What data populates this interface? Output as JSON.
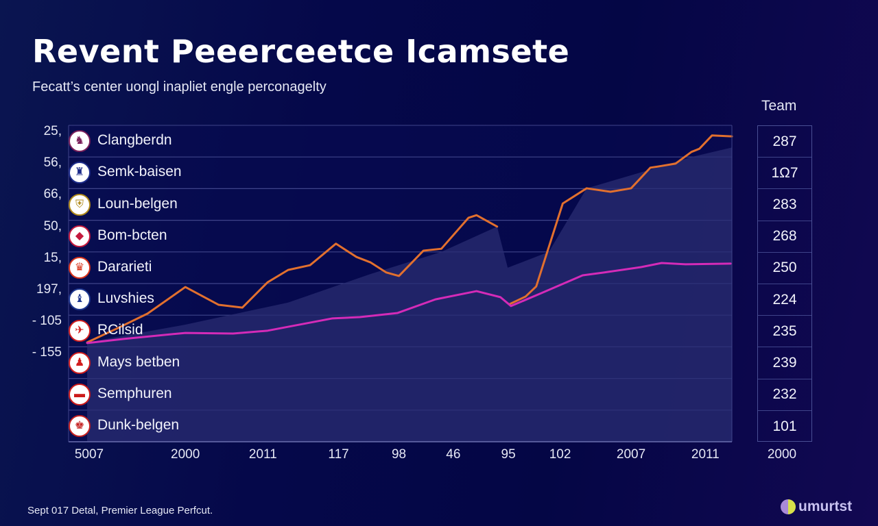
{
  "header": {
    "title": "Revent Peeerceetce Icamsete",
    "subtitle": "Fecatt’s center uongl inapliet engle perconagelty",
    "team_column_label": "Team"
  },
  "footer": {
    "note": "Sept 017 Detal, Premier League Perfcut.",
    "brand": "umurtst",
    "brand_icon": "leaf-swirl-logo-icon"
  },
  "colors": {
    "background": "#05084a",
    "orange_line": "#e2702e",
    "magenta_line": "#d42bb8",
    "area_fill": "#2a2c72",
    "gridline": "#3f448a"
  },
  "rows": [
    {
      "ytick": "25,",
      "team": "Clangberdn",
      "value": "287",
      "logo": "crest-bird-maroon-icon",
      "logo_glyph": "♞",
      "logo_color": "#7a1f5a"
    },
    {
      "ytick": "56,",
      "team": "Semk-baisen",
      "value": "1Ω7",
      "logo": "crest-lion-blue-icon",
      "logo_glyph": "♜",
      "logo_color": "#1d2c8a"
    },
    {
      "ytick": "66,",
      "team": "Loun-belgen",
      "value": "283",
      "logo": "crest-shield-gold-icon",
      "logo_glyph": "⛨",
      "logo_color": "#b08a1a"
    },
    {
      "ytick": "50,",
      "team": "Bom-bcten",
      "value": "268",
      "logo": "crest-diamond-red-icon",
      "logo_glyph": "◆",
      "logo_color": "#c4193d"
    },
    {
      "ytick": "15,",
      "team": "Dararieti",
      "value": "250",
      "logo": "crest-dragon-red-icon",
      "logo_glyph": "♛",
      "logo_color": "#d8331a"
    },
    {
      "ytick": "197,",
      "team": "Luvshies",
      "value": "224",
      "logo": "crest-figure-yellow-icon",
      "logo_glyph": "♝",
      "logo_color": "#1e3790"
    },
    {
      "ytick": "- 105",
      "team": "RCilsid",
      "value": "235",
      "logo": "crest-bat-red-icon",
      "logo_glyph": "✈",
      "logo_color": "#d21e1e"
    },
    {
      "ytick": "- 155",
      "team": "Mays betben",
      "value": "239",
      "logo": "crest-cannon-blue-icon",
      "logo_glyph": "♟",
      "logo_color": "#d21e1e"
    },
    {
      "ytick": "",
      "team": "Semphuren",
      "value": "232",
      "logo": "crest-cannon-red-icon",
      "logo_glyph": "▬",
      "logo_color": "#cc1a1a"
    },
    {
      "ytick": "",
      "team": "Dunk-belgen",
      "value": "101",
      "logo": "crest-teal-icon",
      "logo_glyph": "♚",
      "logo_color": "#c42020"
    }
  ],
  "chart_data": {
    "type": "line",
    "title": "Revent Peeerceetce Icamsete",
    "subtitle": "Fecatt’s center uongl inapliet engle perconagelty",
    "xlabel": "",
    "ylabel": "",
    "x_tick_labels": [
      "5007",
      "2000",
      "2011",
      "117",
      "98",
      "46",
      "95",
      "102",
      "2007",
      "2011"
    ],
    "right_axis_bottom_label": "2000",
    "y_tick_labels": [
      "25,",
      "56,",
      "66,",
      "50,",
      "15,",
      "197,",
      "- 105",
      "- 155"
    ],
    "x_range": [
      0,
      100
    ],
    "ylim": [
      0,
      100
    ],
    "grid": true,
    "legend": "none",
    "series": [
      {
        "name": "orange",
        "color": "#e2702e",
        "segments": [
          [
            [
              2.8,
              31.4
            ],
            [
              7.2,
              35.7
            ],
            [
              11.9,
              40.5
            ],
            [
              17.6,
              48.9
            ],
            [
              22.6,
              43.3
            ],
            [
              26.2,
              42.4
            ],
            [
              30.0,
              50.4
            ],
            [
              33.1,
              54.3
            ],
            [
              36.4,
              55.8
            ],
            [
              40.3,
              62.6
            ],
            [
              43.4,
              58.4
            ],
            [
              45.5,
              56.7
            ],
            [
              47.9,
              53.5
            ],
            [
              49.8,
              52.4
            ],
            [
              53.5,
              60.4
            ],
            [
              56.2,
              61.0
            ],
            [
              60.3,
              70.8
            ],
            [
              61.5,
              71.6
            ],
            [
              64.6,
              68.0
            ]
          ],
          [
            [
              66.5,
              43.5
            ],
            [
              68.9,
              45.9
            ],
            [
              70.5,
              49.1
            ],
            [
              74.5,
              75.3
            ],
            [
              78.1,
              80.1
            ],
            [
              81.7,
              79.0
            ],
            [
              84.8,
              80.1
            ],
            [
              87.7,
              86.6
            ],
            [
              88.9,
              87.0
            ],
            [
              91.5,
              87.9
            ],
            [
              93.9,
              91.6
            ],
            [
              95.1,
              92.6
            ],
            [
              97.0,
              96.8
            ],
            [
              100,
              96.5
            ]
          ]
        ]
      },
      {
        "name": "magenta",
        "color": "#d42bb8",
        "segments": [
          [
            [
              2.8,
              31.2
            ],
            [
              8.3,
              32.5
            ],
            [
              17.6,
              34.4
            ],
            [
              24.8,
              34.2
            ],
            [
              30.0,
              35.1
            ],
            [
              39.8,
              39.0
            ],
            [
              43.9,
              39.4
            ],
            [
              49.6,
              40.7
            ],
            [
              55.3,
              45.0
            ],
            [
              61.5,
              47.6
            ],
            [
              65.1,
              45.7
            ],
            [
              66.7,
              42.9
            ],
            [
              71.3,
              47.0
            ],
            [
              77.5,
              52.6
            ],
            [
              80.7,
              53.5
            ],
            [
              86.3,
              55.2
            ],
            [
              89.4,
              56.5
            ],
            [
              93.0,
              56.1
            ],
            [
              99.8,
              56.3
            ]
          ]
        ]
      }
    ],
    "area": {
      "description": "translucent shaded band beneath the orange line",
      "color": "#2a2c72",
      "points": [
        [
          2.8,
          31.4
        ],
        [
          17.6,
          37.0
        ],
        [
          33.1,
          44.0
        ],
        [
          45.5,
          53.0
        ],
        [
          56.2,
          60.0
        ],
        [
          64.6,
          68.0
        ],
        [
          66.2,
          55.0
        ],
        [
          72.4,
          60.0
        ],
        [
          78.1,
          80.1
        ],
        [
          87.7,
          86.0
        ],
        [
          93.9,
          90.0
        ],
        [
          100,
          93.0
        ]
      ]
    },
    "table_column": {
      "header": "Team",
      "values": [
        "287",
        "1Ω7",
        "283",
        "268",
        "250",
        "224",
        "235",
        "239",
        "232",
        "101"
      ]
    }
  }
}
